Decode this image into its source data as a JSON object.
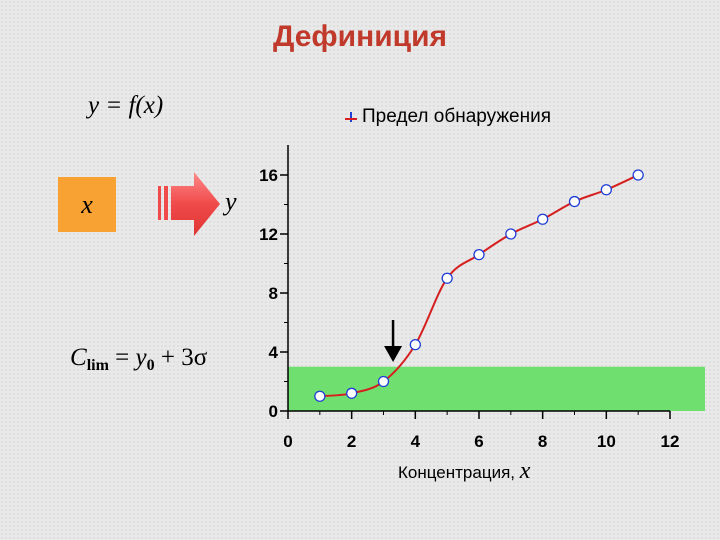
{
  "title": "Дефиниция",
  "formula_main": "y = f(x)",
  "input_box_label": "x",
  "output_label": "y",
  "clim_formula": {
    "base": "C",
    "subscript": "lim",
    "equals": " = ",
    "y": "y",
    "y_subscript": "0",
    "rest": " + 3σ"
  },
  "colors": {
    "title": "#c0392b",
    "curve": "#d62020",
    "point_stroke": "#1f3fd6",
    "band": "#6fe06f",
    "input_box": "#f7a233",
    "big_arrow": "#f04a4a"
  },
  "chart_data": {
    "type": "line",
    "legend": "Предел обнаружения",
    "legend_placement": "top-right",
    "xlabel": "Концентрация,",
    "xlabel_var": "x",
    "ylabel": "",
    "xlim": [
      0,
      12
    ],
    "ylim": [
      0,
      16
    ],
    "x_ticks": [
      "0",
      "2",
      "4",
      "6",
      "8",
      "10",
      "12"
    ],
    "y_ticks": [
      "0",
      "4",
      "8",
      "12",
      "16"
    ],
    "grid": false,
    "points": [
      {
        "x": 1,
        "y": 1.0
      },
      {
        "x": 2,
        "y": 1.2
      },
      {
        "x": 3,
        "y": 2.0
      },
      {
        "x": 4,
        "y": 4.5
      },
      {
        "x": 5,
        "y": 9.0
      },
      {
        "x": 6,
        "y": 10.6
      },
      {
        "x": 7,
        "y": 12.0
      },
      {
        "x": 8,
        "y": 13.0
      },
      {
        "x": 9,
        "y": 14.2
      },
      {
        "x": 10,
        "y": 15.0
      },
      {
        "x": 11,
        "y": 16.0
      }
    ],
    "detection_band": {
      "y_from": 0,
      "y_to": 3
    },
    "detection_limit_arrow_x": 3.3
  }
}
